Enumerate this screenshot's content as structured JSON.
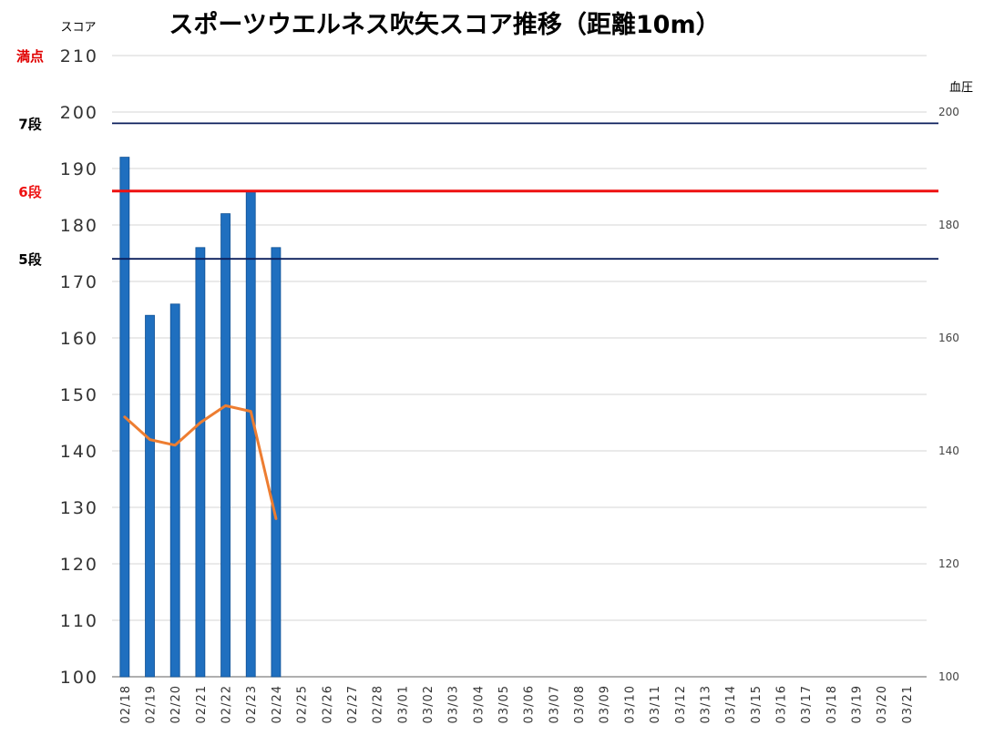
{
  "chart_data": {
    "type": "bar",
    "title": "スポーツウエルネス吹矢スコア推移（距離10m）",
    "ylabel": "スコア",
    "y2label": "血圧",
    "ylim": [
      100,
      210
    ],
    "y2lim": [
      100,
      210
    ],
    "yticks": [
      "100",
      "110",
      "120",
      "130",
      "140",
      "150",
      "160",
      "170",
      "180",
      "190",
      "200",
      "210"
    ],
    "y2ticks": [
      "100",
      "120",
      "140",
      "160",
      "180",
      "200"
    ],
    "grid": true,
    "categories": [
      "02/18",
      "02/19",
      "02/20",
      "02/21",
      "02/22",
      "02/23",
      "02/24",
      "02/25",
      "02/26",
      "02/27",
      "02/28",
      "03/01",
      "03/02",
      "03/03",
      "03/04",
      "03/05",
      "03/06",
      "03/07",
      "03/08",
      "03/09",
      "03/10",
      "03/11",
      "03/12",
      "03/13",
      "03/14",
      "03/15",
      "03/16",
      "03/17",
      "03/18",
      "03/19",
      "03/20",
      "03/21"
    ],
    "series": [
      {
        "kind": "bar",
        "axis": "left",
        "color": "#1f6fbf",
        "values": [
          192,
          164,
          166,
          176,
          182,
          186,
          176,
          null,
          null,
          null,
          null,
          null,
          null,
          null,
          null,
          null,
          null,
          null,
          null,
          null,
          null,
          null,
          null,
          null,
          null,
          null,
          null,
          null,
          null,
          null,
          null,
          null
        ]
      },
      {
        "kind": "line",
        "axis": "right",
        "color": "#ed7d31",
        "values": [
          146,
          142,
          141,
          145,
          148,
          147,
          128,
          null,
          null,
          null,
          null,
          null,
          null,
          null,
          null,
          null,
          null,
          null,
          null,
          null,
          null,
          null,
          null,
          null,
          null,
          null,
          null,
          null,
          null,
          null,
          null,
          null
        ]
      }
    ],
    "reference_lines": [
      {
        "label": "満点",
        "value": 210,
        "color": "#e00000"
      },
      {
        "label": "7段",
        "value": 198,
        "color": "#0b1f5c"
      },
      {
        "label": "6段",
        "value": 186,
        "color": "#ee1111"
      },
      {
        "label": "5段",
        "value": 174,
        "color": "#0b1f5c"
      }
    ]
  }
}
